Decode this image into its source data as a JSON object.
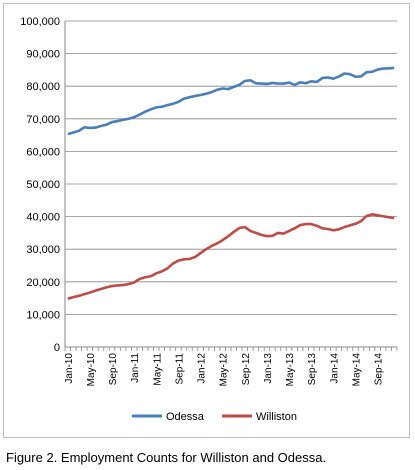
{
  "caption": "Figure 2.  Employment Counts for Williston and Odessa.",
  "chart_data": {
    "type": "line",
    "title": "",
    "xlabel": "",
    "ylabel": "",
    "ylim": [
      0,
      100000
    ],
    "y_ticks": [
      "0",
      "10,000",
      "20,000",
      "30,000",
      "40,000",
      "50,000",
      "60,000",
      "70,000",
      "80,000",
      "90,000",
      "100,000"
    ],
    "grid": "horizontal",
    "legend": "bottom",
    "x_start": "Jan-10",
    "x_tick_labels": [
      "Jan-10",
      "May-10",
      "Sep-10",
      "Jan-11",
      "May-11",
      "Sep-11",
      "Jan-12",
      "May-12",
      "Sep-12",
      "Jan-13",
      "May-13",
      "Sep-13",
      "Jan-14",
      "May-14",
      "Sep-14"
    ],
    "x_tick_every": 4,
    "series": [
      {
        "name": "Odessa",
        "color": "#4a7ebb",
        "values": [
          65300,
          65800,
          66300,
          67400,
          67200,
          67300,
          67800,
          68200,
          69000,
          69300,
          69700,
          70000,
          70500,
          71300,
          72200,
          72900,
          73500,
          73700,
          74200,
          74600,
          75200,
          76200,
          76600,
          77000,
          77300,
          77700,
          78200,
          78900,
          79300,
          79100,
          79800,
          80400,
          81600,
          81800,
          80900,
          80800,
          80700,
          81000,
          80800,
          80800,
          81100,
          80400,
          81200,
          80900,
          81500,
          81300,
          82500,
          82700,
          82300,
          83000,
          83900,
          83700,
          82900,
          83000,
          84300,
          84400,
          85100,
          85400,
          85500,
          85600
        ]
      },
      {
        "name": "Williston",
        "color": "#be4b48",
        "values": [
          14800,
          15300,
          15700,
          16200,
          16700,
          17300,
          17800,
          18300,
          18700,
          18900,
          19000,
          19300,
          19800,
          20900,
          21400,
          21700,
          22600,
          23200,
          24100,
          25600,
          26500,
          26900,
          27000,
          27600,
          28800,
          30000,
          31000,
          31800,
          32800,
          34000,
          35300,
          36500,
          36800,
          35600,
          35000,
          34400,
          34000,
          34100,
          35000,
          34800,
          35600,
          36400,
          37400,
          37700,
          37700,
          37200,
          36400,
          36200,
          35800,
          36100,
          36800,
          37300,
          37800,
          38600,
          40200,
          40700,
          40400,
          40100,
          39800,
          39600
        ]
      }
    ]
  }
}
